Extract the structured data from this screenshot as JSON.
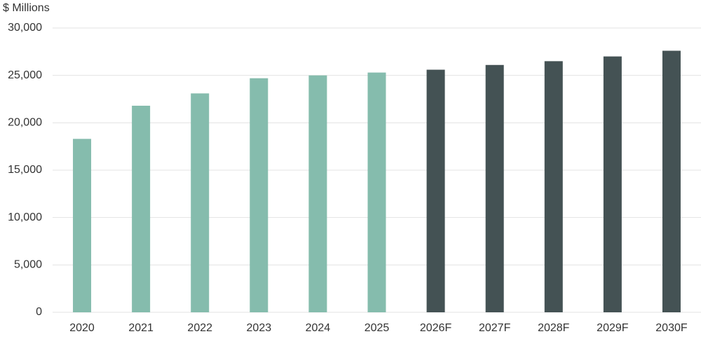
{
  "chart_data": {
    "type": "bar",
    "y_axis_label": "$ Millions",
    "categories": [
      "2020",
      "2021",
      "2022",
      "2023",
      "2024",
      "2025",
      "2026F",
      "2027F",
      "2028F",
      "2029F",
      "2030F"
    ],
    "values": [
      18300,
      21800,
      23100,
      24700,
      25000,
      25300,
      25600,
      26100,
      26500,
      27000,
      27600
    ],
    "colors": [
      "#85bcad",
      "#85bcad",
      "#85bcad",
      "#85bcad",
      "#85bcad",
      "#85bcad",
      "#445254",
      "#445254",
      "#445254",
      "#445254",
      "#445254"
    ],
    "ylim": [
      0,
      30000
    ],
    "yticks": [
      0,
      {
        "value": 5000,
        "label": "5,000"
      },
      {
        "value": 10000,
        "label": "10,000"
      },
      {
        "value": 15000,
        "label": "15,000"
      },
      {
        "value": 20000,
        "label": "20,000"
      },
      {
        "value": 25000,
        "label": "25,000"
      },
      {
        "value": 30000,
        "label": "30,000"
      }
    ],
    "grid": true
  }
}
